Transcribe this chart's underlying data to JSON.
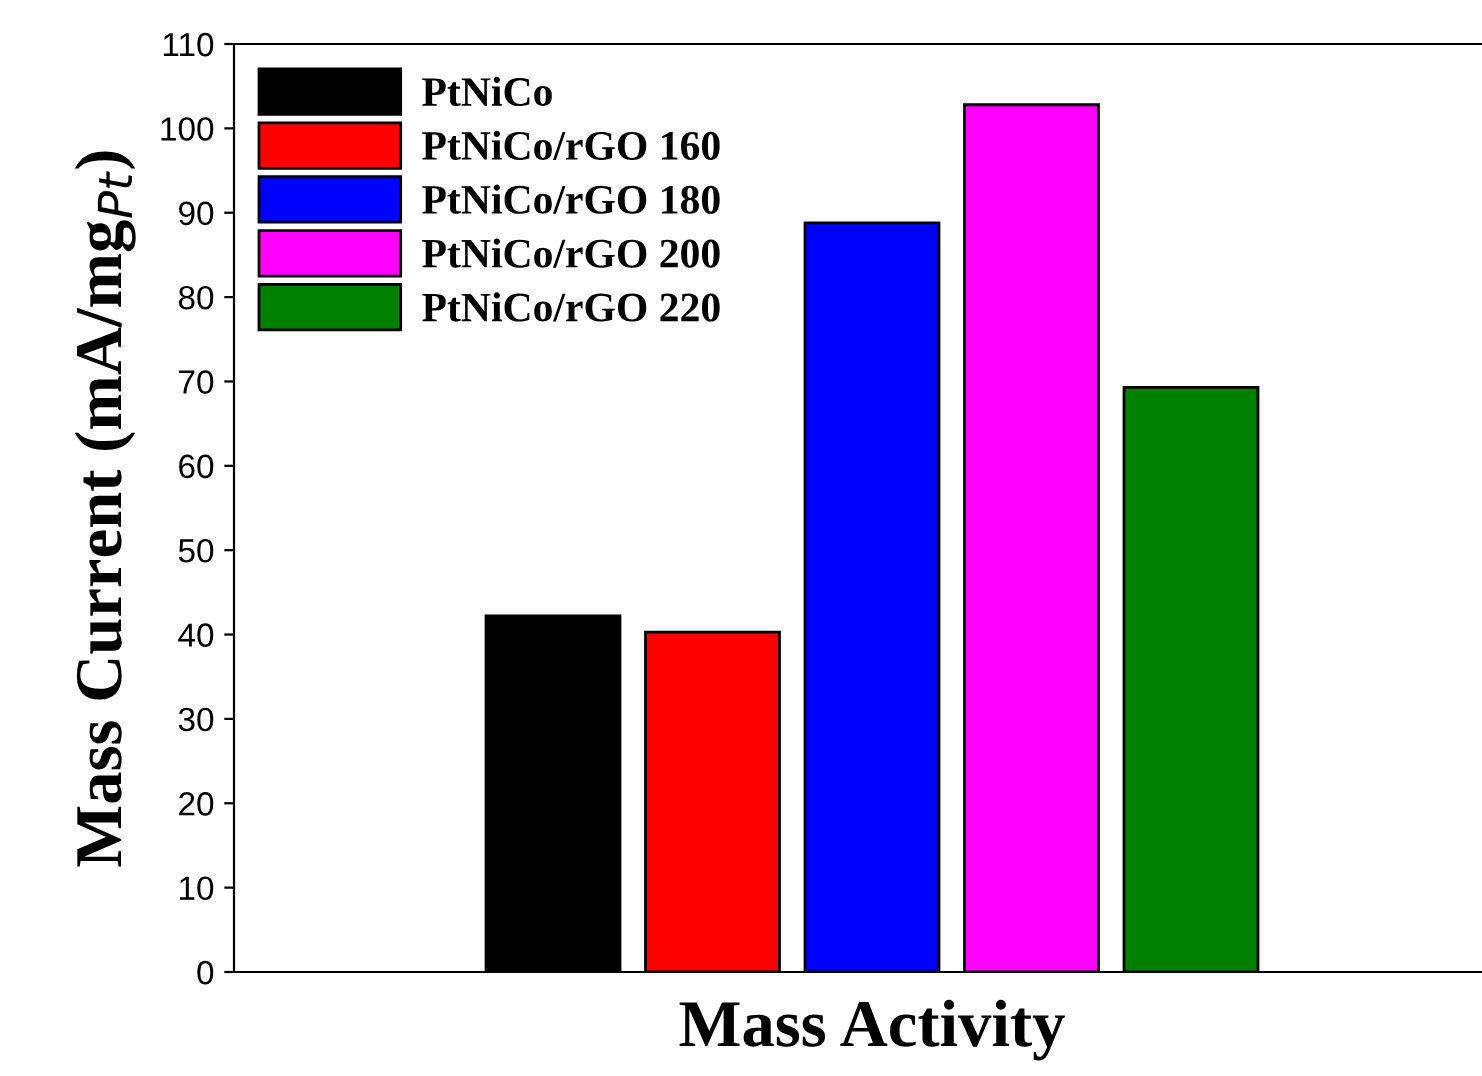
{
  "chart_data": {
    "type": "bar",
    "xlabel": "Mass Activity",
    "ylabel": "Mass Current (mA/mg$_{Pt}$)",
    "categories": [
      null
    ],
    "series": [
      {
        "name": "PtNiCo",
        "color": "#000000",
        "values": [
          42.2
        ]
      },
      {
        "name": "PtNiCo/rGO 160",
        "color": "#ff0000",
        "values": [
          40.3
        ]
      },
      {
        "name": "PtNiCo/rGO 180",
        "color": "#0000ff",
        "values": [
          88.8
        ]
      },
      {
        "name": "PtNiCo/rGO 200",
        "color": "#ff00ff",
        "values": [
          102.8
        ]
      },
      {
        "name": "PtNiCo/rGO 220",
        "color": "#008000",
        "values": [
          69.3
        ]
      }
    ],
    "ylim": [
      0,
      110
    ],
    "yticks": [
      0,
      10,
      20,
      30,
      40,
      50,
      60,
      70,
      80,
      90,
      100,
      110
    ],
    "tick_labels": "y",
    "grid": false,
    "legend": "top left"
  }
}
